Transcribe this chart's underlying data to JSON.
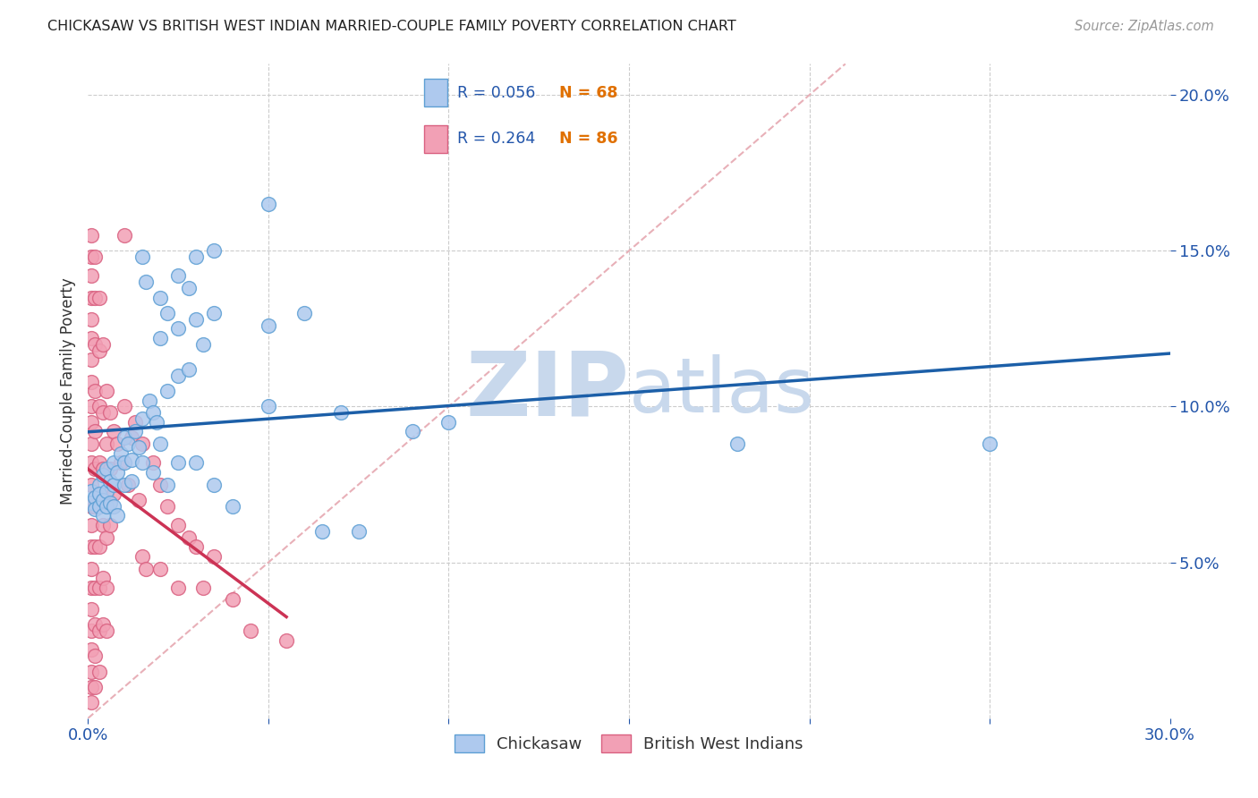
{
  "title": "CHICKASAW VS BRITISH WEST INDIAN MARRIED-COUPLE FAMILY POVERTY CORRELATION CHART",
  "source": "Source: ZipAtlas.com",
  "ylabel": "Married-Couple Family Poverty",
  "xlim": [
    0.0,
    0.3
  ],
  "ylim": [
    0.0,
    0.21
  ],
  "ytick_positions": [
    0.05,
    0.1,
    0.15,
    0.2
  ],
  "ytick_labels": [
    "5.0%",
    "10.0%",
    "15.0%",
    "20.0%"
  ],
  "xtick_positions": [
    0.0,
    0.05,
    0.1,
    0.15,
    0.2,
    0.25,
    0.3
  ],
  "xtick_labels": [
    "0.0%",
    "",
    "",
    "",
    "",
    "",
    "30.0%"
  ],
  "chickasaw_color": "#aec9ee",
  "chickasaw_edge": "#5d9fd4",
  "bwi_color": "#f2a0b5",
  "bwi_edge": "#d96080",
  "trend_chickasaw_color": "#1c5fa8",
  "trend_bwi_color": "#cc3355",
  "diagonal_color": "#e8b0b8",
  "diagonal_style": "--",
  "watermark_zip_color": "#c8d8ec",
  "watermark_atlas_color": "#c8d8ec",
  "axis_label_color": "#2255aa",
  "background_color": "#ffffff",
  "legend_R_color": "#2255aa",
  "legend_N_color": "#e07000",
  "chickasaw_points": [
    [
      0.001,
      0.073
    ],
    [
      0.001,
      0.069
    ],
    [
      0.002,
      0.071
    ],
    [
      0.002,
      0.067
    ],
    [
      0.003,
      0.075
    ],
    [
      0.003,
      0.068
    ],
    [
      0.003,
      0.072
    ],
    [
      0.004,
      0.078
    ],
    [
      0.004,
      0.065
    ],
    [
      0.004,
      0.07
    ],
    [
      0.005,
      0.08
    ],
    [
      0.005,
      0.073
    ],
    [
      0.005,
      0.068
    ],
    [
      0.006,
      0.076
    ],
    [
      0.006,
      0.069
    ],
    [
      0.007,
      0.082
    ],
    [
      0.007,
      0.075
    ],
    [
      0.007,
      0.068
    ],
    [
      0.008,
      0.079
    ],
    [
      0.008,
      0.065
    ],
    [
      0.009,
      0.085
    ],
    [
      0.01,
      0.09
    ],
    [
      0.01,
      0.082
    ],
    [
      0.01,
      0.075
    ],
    [
      0.011,
      0.088
    ],
    [
      0.012,
      0.083
    ],
    [
      0.012,
      0.076
    ],
    [
      0.013,
      0.092
    ],
    [
      0.014,
      0.087
    ],
    [
      0.015,
      0.148
    ],
    [
      0.015,
      0.096
    ],
    [
      0.015,
      0.082
    ],
    [
      0.016,
      0.14
    ],
    [
      0.017,
      0.102
    ],
    [
      0.018,
      0.098
    ],
    [
      0.018,
      0.079
    ],
    [
      0.019,
      0.095
    ],
    [
      0.02,
      0.135
    ],
    [
      0.02,
      0.122
    ],
    [
      0.02,
      0.088
    ],
    [
      0.022,
      0.13
    ],
    [
      0.022,
      0.105
    ],
    [
      0.022,
      0.075
    ],
    [
      0.025,
      0.142
    ],
    [
      0.025,
      0.125
    ],
    [
      0.025,
      0.11
    ],
    [
      0.025,
      0.082
    ],
    [
      0.028,
      0.138
    ],
    [
      0.028,
      0.112
    ],
    [
      0.03,
      0.148
    ],
    [
      0.03,
      0.128
    ],
    [
      0.03,
      0.082
    ],
    [
      0.032,
      0.12
    ],
    [
      0.035,
      0.15
    ],
    [
      0.035,
      0.13
    ],
    [
      0.035,
      0.075
    ],
    [
      0.04,
      0.068
    ],
    [
      0.05,
      0.165
    ],
    [
      0.05,
      0.126
    ],
    [
      0.05,
      0.1
    ],
    [
      0.06,
      0.13
    ],
    [
      0.065,
      0.06
    ],
    [
      0.07,
      0.098
    ],
    [
      0.075,
      0.06
    ],
    [
      0.09,
      0.092
    ],
    [
      0.1,
      0.095
    ],
    [
      0.18,
      0.088
    ],
    [
      0.25,
      0.088
    ]
  ],
  "bwi_points": [
    [
      0.001,
      0.155
    ],
    [
      0.001,
      0.148
    ],
    [
      0.001,
      0.142
    ],
    [
      0.001,
      0.135
    ],
    [
      0.001,
      0.128
    ],
    [
      0.001,
      0.122
    ],
    [
      0.001,
      0.115
    ],
    [
      0.001,
      0.108
    ],
    [
      0.001,
      0.1
    ],
    [
      0.001,
      0.095
    ],
    [
      0.001,
      0.088
    ],
    [
      0.001,
      0.082
    ],
    [
      0.001,
      0.075
    ],
    [
      0.001,
      0.068
    ],
    [
      0.001,
      0.062
    ],
    [
      0.001,
      0.055
    ],
    [
      0.001,
      0.048
    ],
    [
      0.001,
      0.042
    ],
    [
      0.001,
      0.035
    ],
    [
      0.001,
      0.028
    ],
    [
      0.001,
      0.022
    ],
    [
      0.001,
      0.015
    ],
    [
      0.001,
      0.01
    ],
    [
      0.001,
      0.005
    ],
    [
      0.002,
      0.148
    ],
    [
      0.002,
      0.135
    ],
    [
      0.002,
      0.12
    ],
    [
      0.002,
      0.105
    ],
    [
      0.002,
      0.092
    ],
    [
      0.002,
      0.08
    ],
    [
      0.002,
      0.068
    ],
    [
      0.002,
      0.055
    ],
    [
      0.002,
      0.042
    ],
    [
      0.002,
      0.03
    ],
    [
      0.002,
      0.02
    ],
    [
      0.002,
      0.01
    ],
    [
      0.003,
      0.135
    ],
    [
      0.003,
      0.118
    ],
    [
      0.003,
      0.1
    ],
    [
      0.003,
      0.082
    ],
    [
      0.003,
      0.068
    ],
    [
      0.003,
      0.055
    ],
    [
      0.003,
      0.042
    ],
    [
      0.003,
      0.028
    ],
    [
      0.003,
      0.015
    ],
    [
      0.004,
      0.12
    ],
    [
      0.004,
      0.098
    ],
    [
      0.004,
      0.08
    ],
    [
      0.004,
      0.062
    ],
    [
      0.004,
      0.045
    ],
    [
      0.004,
      0.03
    ],
    [
      0.005,
      0.105
    ],
    [
      0.005,
      0.088
    ],
    [
      0.005,
      0.072
    ],
    [
      0.005,
      0.058
    ],
    [
      0.005,
      0.042
    ],
    [
      0.005,
      0.028
    ],
    [
      0.006,
      0.098
    ],
    [
      0.006,
      0.08
    ],
    [
      0.006,
      0.062
    ],
    [
      0.007,
      0.092
    ],
    [
      0.007,
      0.072
    ],
    [
      0.008,
      0.088
    ],
    [
      0.009,
      0.082
    ],
    [
      0.01,
      0.1
    ],
    [
      0.011,
      0.075
    ],
    [
      0.012,
      0.09
    ],
    [
      0.013,
      0.095
    ],
    [
      0.014,
      0.07
    ],
    [
      0.015,
      0.088
    ],
    [
      0.015,
      0.052
    ],
    [
      0.016,
      0.048
    ],
    [
      0.018,
      0.082
    ],
    [
      0.02,
      0.075
    ],
    [
      0.02,
      0.048
    ],
    [
      0.022,
      0.068
    ],
    [
      0.025,
      0.062
    ],
    [
      0.025,
      0.042
    ],
    [
      0.028,
      0.058
    ],
    [
      0.03,
      0.055
    ],
    [
      0.032,
      0.042
    ],
    [
      0.035,
      0.052
    ],
    [
      0.04,
      0.038
    ],
    [
      0.045,
      0.028
    ],
    [
      0.055,
      0.025
    ],
    [
      0.01,
      0.155
    ]
  ]
}
